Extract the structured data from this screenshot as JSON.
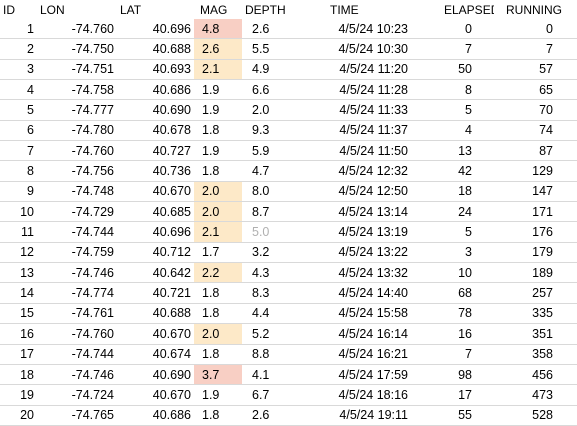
{
  "colors": {
    "mag_high": "#f8cfc4",
    "mag_medium": "#fde9c8",
    "grid": "#d9d9d9",
    "muted_text": "#b0b0b0"
  },
  "headers": {
    "id": "ID",
    "lon": "LON",
    "lat": "LAT",
    "mag": "MAG",
    "depth": "DEPTH",
    "time": "TIME",
    "elapsed": "ELAPSED",
    "running": "RUNNING"
  },
  "rows": [
    {
      "id": "1",
      "lon": "-74.760",
      "lat": "40.696",
      "mag": "4.8",
      "depth": "2.6",
      "time": "4/5/24 10:23",
      "elapsed": "0",
      "running": "0",
      "mag_level": "high"
    },
    {
      "id": "2",
      "lon": "-74.750",
      "lat": "40.688",
      "mag": "2.6",
      "depth": "5.5",
      "time": "4/5/24 10:30",
      "elapsed": "7",
      "running": "7",
      "mag_level": "medium"
    },
    {
      "id": "3",
      "lon": "-74.751",
      "lat": "40.693",
      "mag": "2.1",
      "depth": "4.9",
      "time": "4/5/24 11:20",
      "elapsed": "50",
      "running": "57",
      "mag_level": "medium"
    },
    {
      "id": "4",
      "lon": "-74.758",
      "lat": "40.686",
      "mag": "1.9",
      "depth": "6.6",
      "time": "4/5/24 11:28",
      "elapsed": "8",
      "running": "65"
    },
    {
      "id": "5",
      "lon": "-74.777",
      "lat": "40.690",
      "mag": "1.9",
      "depth": "2.0",
      "time": "4/5/24 11:33",
      "elapsed": "5",
      "running": "70"
    },
    {
      "id": "6",
      "lon": "-74.780",
      "lat": "40.678",
      "mag": "1.8",
      "depth": "9.3",
      "time": "4/5/24 11:37",
      "elapsed": "4",
      "running": "74"
    },
    {
      "id": "7",
      "lon": "-74.760",
      "lat": "40.727",
      "mag": "1.9",
      "depth": "5.9",
      "time": "4/5/24 11:50",
      "elapsed": "13",
      "running": "87"
    },
    {
      "id": "8",
      "lon": "-74.756",
      "lat": "40.736",
      "mag": "1.8",
      "depth": "4.7",
      "time": "4/5/24 12:32",
      "elapsed": "42",
      "running": "129"
    },
    {
      "id": "9",
      "lon": "-74.748",
      "lat": "40.670",
      "mag": "2.0",
      "depth": "8.0",
      "time": "4/5/24 12:50",
      "elapsed": "18",
      "running": "147",
      "mag_level": "medium"
    },
    {
      "id": "10",
      "lon": "-74.729",
      "lat": "40.685",
      "mag": "2.0",
      "depth": "8.7",
      "time": "4/5/24 13:14",
      "elapsed": "24",
      "running": "171",
      "mag_level": "medium"
    },
    {
      "id": "11",
      "lon": "-74.744",
      "lat": "40.696",
      "mag": "2.1",
      "depth": "5.0",
      "time": "4/5/24 13:19",
      "elapsed": "5",
      "running": "176",
      "mag_level": "medium",
      "depth_muted": true
    },
    {
      "id": "12",
      "lon": "-74.759",
      "lat": "40.712",
      "mag": "1.7",
      "depth": "3.2",
      "time": "4/5/24 13:22",
      "elapsed": "3",
      "running": "179"
    },
    {
      "id": "13",
      "lon": "-74.746",
      "lat": "40.642",
      "mag": "2.2",
      "depth": "4.3",
      "time": "4/5/24 13:32",
      "elapsed": "10",
      "running": "189",
      "mag_level": "medium"
    },
    {
      "id": "14",
      "lon": "-74.774",
      "lat": "40.721",
      "mag": "1.8",
      "depth": "8.3",
      "time": "4/5/24 14:40",
      "elapsed": "68",
      "running": "257"
    },
    {
      "id": "15",
      "lon": "-74.761",
      "lat": "40.688",
      "mag": "1.8",
      "depth": "4.4",
      "time": "4/5/24 15:58",
      "elapsed": "78",
      "running": "335"
    },
    {
      "id": "16",
      "lon": "-74.760",
      "lat": "40.670",
      "mag": "2.0",
      "depth": "5.2",
      "time": "4/5/24 16:14",
      "elapsed": "16",
      "running": "351",
      "mag_level": "medium"
    },
    {
      "id": "17",
      "lon": "-74.744",
      "lat": "40.674",
      "mag": "1.8",
      "depth": "8.8",
      "time": "4/5/24 16:21",
      "elapsed": "7",
      "running": "358"
    },
    {
      "id": "18",
      "lon": "-74.746",
      "lat": "40.690",
      "mag": "3.7",
      "depth": "4.1",
      "time": "4/5/24 17:59",
      "elapsed": "98",
      "running": "456",
      "mag_level": "high"
    },
    {
      "id": "19",
      "lon": "-74.724",
      "lat": "40.670",
      "mag": "1.9",
      "depth": "6.7",
      "time": "4/5/24 18:16",
      "elapsed": "17",
      "running": "473"
    },
    {
      "id": "20",
      "lon": "-74.765",
      "lat": "40.686",
      "mag": "1.8",
      "depth": "2.6",
      "time": "4/5/24 19:11",
      "elapsed": "55",
      "running": "528"
    }
  ]
}
